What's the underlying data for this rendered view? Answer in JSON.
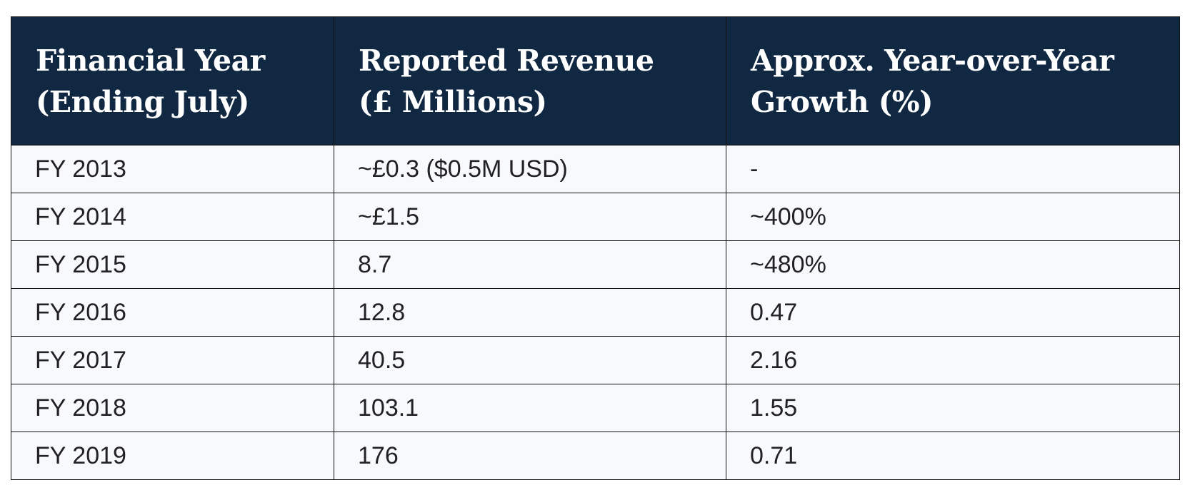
{
  "table": {
    "headers": [
      [
        "Financial Year",
        "(Ending July)"
      ],
      [
        "Reported Revenue",
        "(£ Millions)"
      ],
      [
        "Approx. Year-over-Year",
        "Growth (%)"
      ]
    ],
    "rows": [
      [
        "FY 2013",
        "~£0.3 ($0.5M USD)",
        "-"
      ],
      [
        "FY 2014",
        "~£1.5",
        "~400%"
      ],
      [
        "FY 2015",
        "8.7",
        "~480%"
      ],
      [
        "FY 2016",
        "12.8",
        "0.47"
      ],
      [
        "FY 2017",
        "40.5",
        "2.16"
      ],
      [
        "FY 2018",
        "103.1",
        "1.55"
      ],
      [
        "FY 2019",
        "176",
        "0.71"
      ]
    ]
  },
  "colors": {
    "header_bg": "#112843",
    "header_text": "#ffffff",
    "row_bg": "#f7f9fd",
    "row_text": "#222222",
    "border": "#111111"
  }
}
